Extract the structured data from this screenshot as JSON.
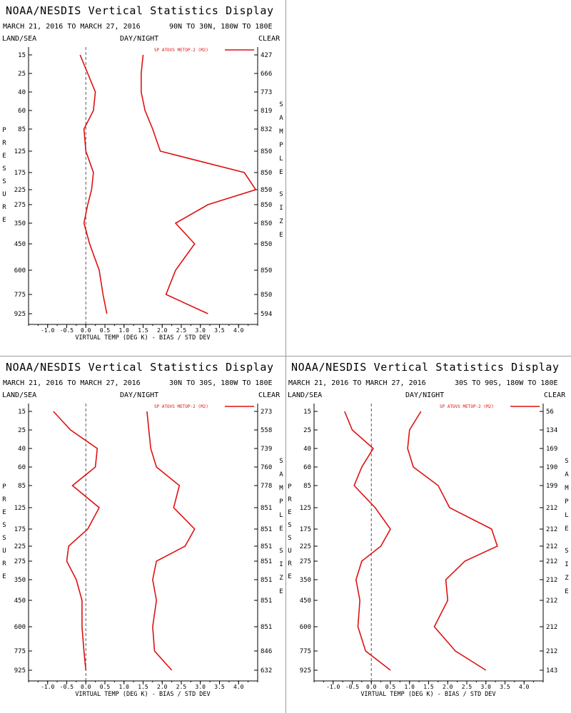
{
  "page": {
    "empty_panel": ""
  },
  "colors": {
    "series": "#dd1111",
    "axis": "#000000",
    "zero_line": "#555555"
  },
  "chart_data": [
    {
      "type": "line",
      "title": "NOAA/NESDIS Vertical Statistics Display",
      "date_range": "MARCH 21, 2016 TO MARCH 27, 2016",
      "region": "90N TO 30N, 180W TO 180E",
      "label_left": "LAND/SEA",
      "label_center": "DAY/NIGHT",
      "label_right": "CLEAR",
      "ylabel": "PRESSURE",
      "ylabel_right": "SAMPLE SIZE",
      "xlabel": "VIRTUAL TEMP (DEG K) - BIAS / STD DEV",
      "legend": "SP ATOVS METOP-2 (M2)",
      "legend_position": "top-right",
      "xlim": [
        -1.5,
        4.5
      ],
      "xticks": [
        "-1.0",
        "-0.5",
        "0.0",
        "0.5",
        "1.0",
        "1.5",
        "2.0",
        "2.5",
        "3.0",
        "3.5",
        "4.0"
      ],
      "pressure_levels": [
        "15",
        "25",
        "40",
        "60",
        "85",
        "125",
        "175",
        "225",
        "275",
        "350",
        "450",
        "600",
        "775",
        "925"
      ],
      "sample_size": [
        "427",
        "666",
        "773",
        "819",
        "832",
        "850",
        "850",
        "850",
        "850",
        "850",
        "850",
        "850",
        "850",
        "594"
      ],
      "series": [
        {
          "name": "bias",
          "values": [
            -0.15,
            0.05,
            0.25,
            0.2,
            -0.05,
            0.0,
            0.2,
            0.15,
            0.05,
            -0.05,
            0.1,
            0.35,
            0.45,
            0.55
          ]
        },
        {
          "name": "std_dev",
          "values": [
            1.5,
            1.45,
            1.45,
            1.55,
            1.75,
            1.95,
            4.15,
            4.45,
            3.2,
            2.35,
            2.85,
            2.35,
            2.1,
            3.2
          ]
        }
      ]
    },
    {
      "type": "line",
      "title": "NOAA/NESDIS Vertical Statistics Display",
      "date_range": "MARCH 21, 2016 TO MARCH 27, 2016",
      "region": "30N TO 30S, 180W TO 180E",
      "label_left": "LAND/SEA",
      "label_center": "DAY/NIGHT",
      "label_right": "CLEAR",
      "ylabel": "PRESSURE",
      "ylabel_right": "SAMPLE SIZE",
      "xlabel": "VIRTUAL TEMP (DEG K) - BIAS / STD DEV",
      "legend": "SP ATOVS METOP-2 (M2)",
      "legend_position": "top-right",
      "xlim": [
        -1.5,
        4.5
      ],
      "xticks": [
        "-1.0",
        "-0.5",
        "0.0",
        "0.5",
        "1.0",
        "1.5",
        "2.0",
        "2.5",
        "3.0",
        "3.5",
        "4.0"
      ],
      "pressure_levels": [
        "15",
        "25",
        "40",
        "60",
        "85",
        "125",
        "175",
        "225",
        "275",
        "350",
        "450",
        "600",
        "775",
        "925"
      ],
      "sample_size": [
        "273",
        "558",
        "739",
        "760",
        "778",
        "851",
        "851",
        "851",
        "851",
        "851",
        "851",
        "851",
        "846",
        "632"
      ],
      "series": [
        {
          "name": "bias",
          "values": [
            -0.85,
            -0.4,
            0.3,
            0.25,
            -0.35,
            0.35,
            0.05,
            -0.45,
            -0.5,
            -0.25,
            -0.1,
            -0.1,
            -0.05,
            0.0
          ]
        },
        {
          "name": "std_dev",
          "values": [
            1.6,
            1.65,
            1.7,
            1.85,
            2.45,
            2.3,
            2.85,
            2.6,
            1.85,
            1.75,
            1.85,
            1.75,
            1.8,
            2.25
          ]
        }
      ]
    },
    {
      "type": "line",
      "title": "NOAA/NESDIS Vertical Statistics Display",
      "date_range": "MARCH 21, 2016 TO MARCH 27, 2016",
      "region": "30S TO 90S, 180W TO 180E",
      "label_left": "LAND/SEA",
      "label_center": "DAY/NIGHT",
      "label_right": "CLEAR",
      "ylabel": "PRESSURE",
      "ylabel_right": "SAMPLE SIZE",
      "xlabel": "VIRTUAL TEMP (DEG K) - BIAS / STD DEV",
      "legend": "SP ATOVS METOP-2 (M2)",
      "legend_position": "top-right",
      "xlim": [
        -1.5,
        4.5
      ],
      "xticks": [
        "-1.0",
        "-0.5",
        "0.0",
        "0.5",
        "1.0",
        "1.5",
        "2.0",
        "2.5",
        "3.0",
        "3.5",
        "4.0"
      ],
      "pressure_levels": [
        "15",
        "25",
        "40",
        "60",
        "85",
        "125",
        "175",
        "225",
        "275",
        "350",
        "450",
        "600",
        "775",
        "925"
      ],
      "sample_size": [
        "56",
        "134",
        "169",
        "190",
        "199",
        "212",
        "212",
        "212",
        "212",
        "212",
        "212",
        "212",
        "212",
        "143"
      ],
      "series": [
        {
          "name": "bias",
          "values": [
            -0.7,
            -0.5,
            0.05,
            -0.25,
            -0.45,
            0.1,
            0.5,
            0.25,
            -0.25,
            -0.4,
            -0.3,
            -0.35,
            -0.15,
            0.5
          ]
        },
        {
          "name": "std_dev",
          "values": [
            1.3,
            1.0,
            0.95,
            1.1,
            1.75,
            2.05,
            3.15,
            3.3,
            2.45,
            1.95,
            2.0,
            1.65,
            2.2,
            3.0
          ]
        }
      ]
    }
  ]
}
